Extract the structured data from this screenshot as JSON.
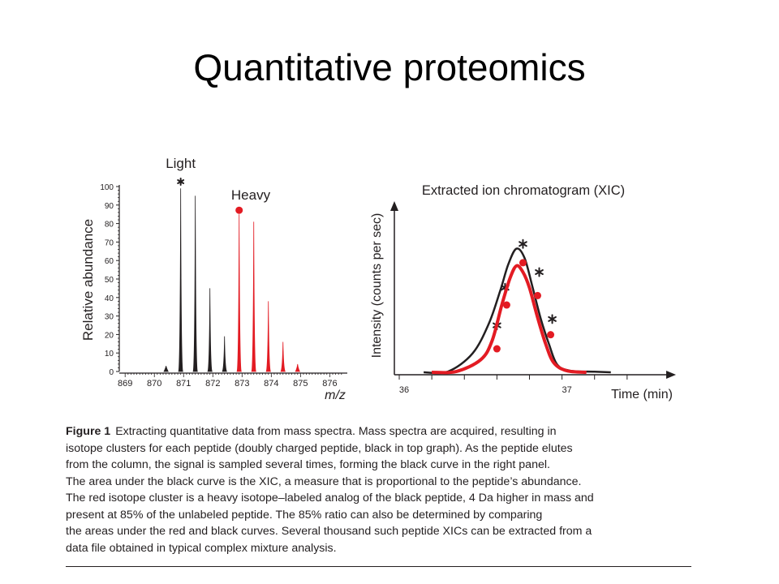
{
  "slide": {
    "title": "Quantitative proteomics"
  },
  "chart_data": [
    {
      "type": "bar",
      "subtype": "mass-spectrum",
      "ylabel": "Relative abundance",
      "xlabel": "m/z",
      "xlim": [
        868.8,
        876.6
      ],
      "ylim": [
        0,
        100
      ],
      "x_ticks": [
        "869",
        "870",
        "871",
        "872",
        "873",
        "874",
        "875",
        "876"
      ],
      "y_ticks": [
        "0",
        "10",
        "20",
        "30",
        "40",
        "50",
        "60",
        "70",
        "80",
        "90",
        "100"
      ],
      "annotations": [
        {
          "text": "Light",
          "color": "#231f20",
          "marker": "*",
          "x": 870.9,
          "y": 100
        },
        {
          "text": "Heavy",
          "color": "#e31b23",
          "marker": "dot",
          "x": 872.9,
          "y": 85
        }
      ],
      "series": [
        {
          "color": "#231f20",
          "x": [
            870.4,
            870.9,
            871.4,
            871.9,
            872.4
          ],
          "values": [
            3,
            99,
            95,
            45,
            19
          ]
        },
        {
          "color": "#e31b23",
          "x": [
            872.9,
            873.4,
            873.9,
            874.4,
            874.9
          ],
          "values": [
            85,
            81,
            38,
            16,
            4
          ]
        }
      ]
    },
    {
      "type": "line",
      "title": "Extracted ion chromatogram (XIC)",
      "xlabel": "Time (min)",
      "ylabel": "Intensity (counts per sec)",
      "x_ticks": [
        "36",
        "37"
      ],
      "xlim": [
        35.97,
        37.7
      ],
      "ylim": [
        0,
        1
      ],
      "series": [
        {
          "color": "#231f20",
          "marker": "*",
          "x": [
            36.15,
            36.3,
            36.45,
            36.55,
            36.62,
            36.67,
            36.72,
            36.77,
            36.82,
            36.87,
            36.92,
            36.97,
            37.05,
            37.2,
            37.3
          ],
          "values": [
            0.0,
            0.005,
            0.12,
            0.31,
            0.52,
            0.69,
            0.79,
            0.73,
            0.54,
            0.34,
            0.18,
            0.05,
            0.01,
            0.004,
            0.0
          ],
          "marker_points": [
            {
              "x": 36.6,
              "y": 0.3
            },
            {
              "x": 36.65,
              "y": 0.54
            },
            {
              "x": 36.76,
              "y": 0.82
            },
            {
              "x": 36.86,
              "y": 0.64
            },
            {
              "x": 36.94,
              "y": 0.34
            }
          ]
        },
        {
          "color": "#e31b23",
          "marker": "dot",
          "x": [
            36.2,
            36.35,
            36.5,
            36.57,
            36.63,
            36.68,
            36.72,
            36.76,
            36.8,
            36.85,
            36.9,
            36.95,
            37.03,
            37.15
          ],
          "values": [
            0.0,
            0.005,
            0.08,
            0.2,
            0.43,
            0.6,
            0.68,
            0.64,
            0.54,
            0.35,
            0.18,
            0.06,
            0.01,
            0.0
          ],
          "marker_points": [
            {
              "x": 36.6,
              "y": 0.15
            },
            {
              "x": 36.66,
              "y": 0.43
            },
            {
              "x": 36.76,
              "y": 0.7
            },
            {
              "x": 36.85,
              "y": 0.49
            },
            {
              "x": 36.93,
              "y": 0.24
            }
          ]
        }
      ]
    }
  ],
  "caption": {
    "label": "Figure 1",
    "lines": [
      "Extracting quantitative data from mass spectra. Mass spectra are acquired, resulting in",
      "isotope clusters for each peptide (doubly charged peptide, black in top graph). As the peptide elutes",
      "from the column, the signal is sampled several times, forming the black curve in the right panel.",
      "The area under the black curve is the XIC, a measure that is proportional to the peptide’s abundance.",
      "The red isotope cluster is a heavy isotope–labeled analog of the black peptide, 4 Da higher in mass and",
      "present at 85% of the unlabeled peptide. The 85% ratio can also be determined by comparing",
      "the areas under the red and black curves. Several thousand such peptide XICs can be extracted from a",
      "data file obtained in typical complex mixture analysis."
    ]
  }
}
